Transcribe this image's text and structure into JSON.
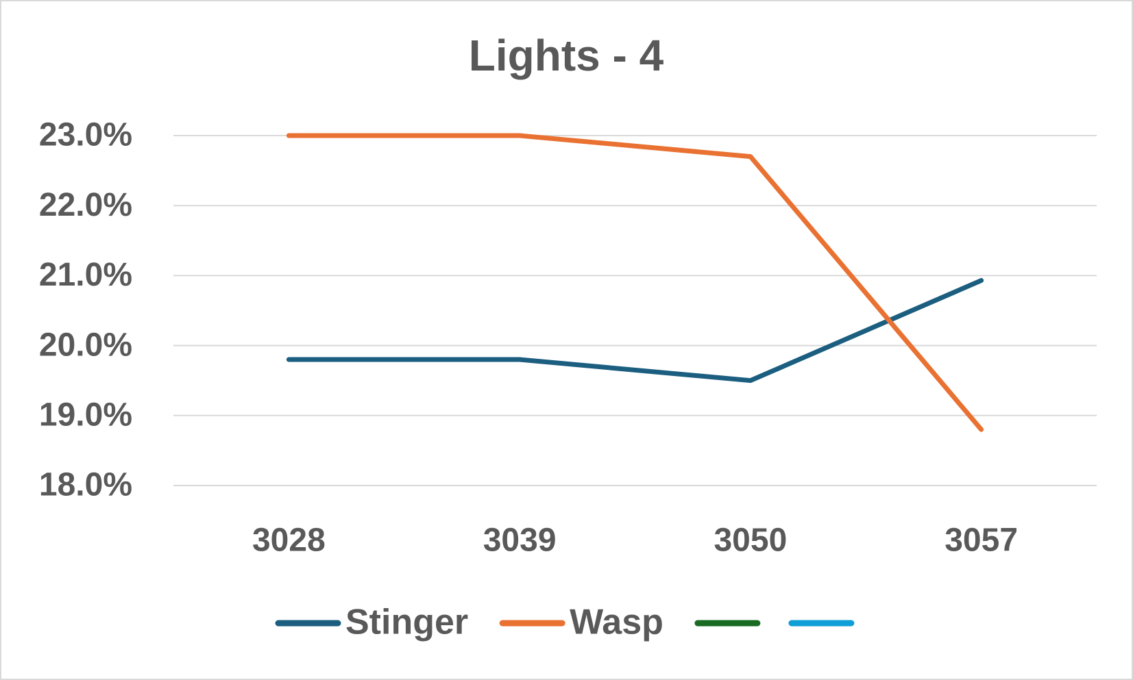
{
  "chart_data": {
    "type": "line",
    "title": "Lights - 4",
    "categories": [
      "3028",
      "3039",
      "3050",
      "3057"
    ],
    "series": [
      {
        "name": "Stinger",
        "color": "#1b5e80",
        "values": [
          19.8,
          19.8,
          19.5,
          20.93
        ]
      },
      {
        "name": "Wasp",
        "color": "#e97132",
        "values": [
          23.0,
          23.0,
          22.7,
          18.8
        ]
      },
      {
        "color": "#196b24",
        "values": [
          null,
          null,
          null,
          null
        ]
      },
      {
        "color": "#0f9ed5",
        "values": [
          null,
          null,
          null,
          null
        ]
      }
    ],
    "ylim": [
      18,
      23
    ],
    "yticks": [
      {
        "value": 18,
        "label": "18.0%"
      },
      {
        "value": 19,
        "label": "19.0%"
      },
      {
        "value": 20,
        "label": "20.0%"
      },
      {
        "value": 21,
        "label": "21.0%"
      },
      {
        "value": 22,
        "label": "22.0%"
      },
      {
        "value": 23,
        "label": "23.0%"
      }
    ],
    "grid": true,
    "legend": "bottom"
  }
}
